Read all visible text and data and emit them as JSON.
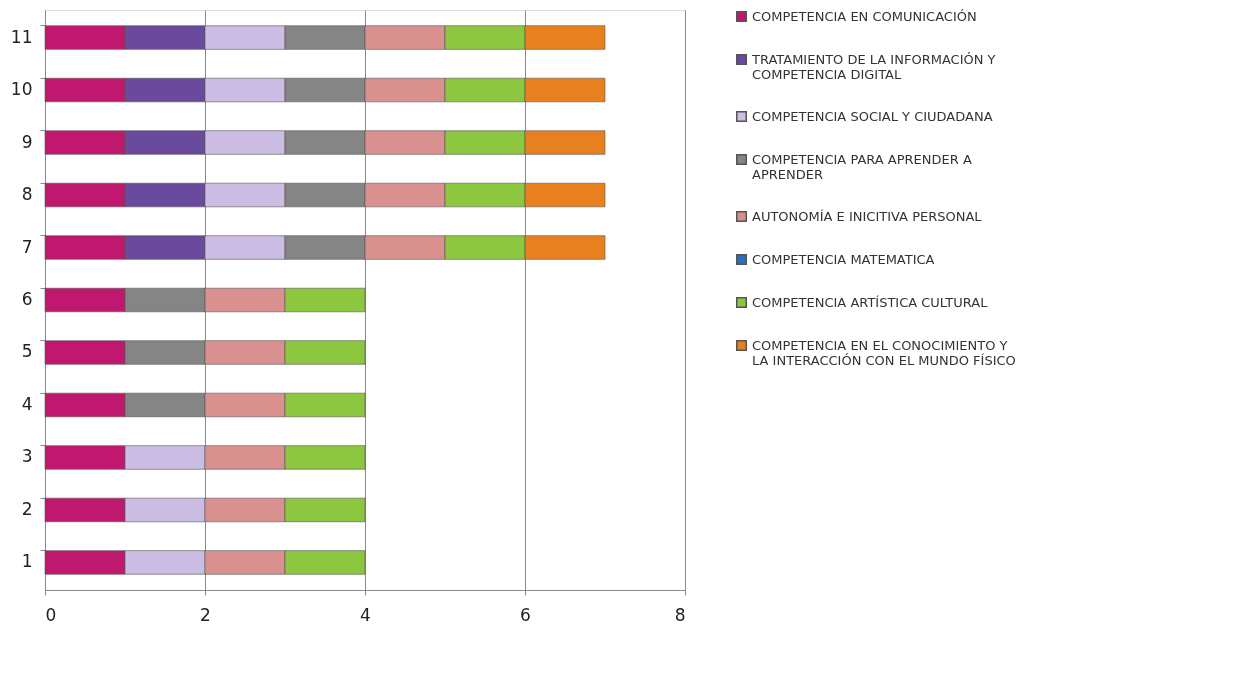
{
  "chart_data": {
    "type": "bar",
    "orientation": "horizontal",
    "stacked": true,
    "categories": [
      "11",
      "10",
      "9",
      "8",
      "7",
      "6",
      "5",
      "4",
      "3",
      "2",
      "1"
    ],
    "series": [
      {
        "name": "COMPETENCIA EN COMUNICACIÓN",
        "color": "#c0186f",
        "values": [
          1,
          1,
          1,
          1,
          1,
          1,
          1,
          1,
          1,
          1,
          1
        ]
      },
      {
        "name": "TRATAMIENTO DE LA INFORMACIÓN Y COMPETENCIA DIGITAL",
        "color": "#6a4a9c",
        "values": [
          1,
          1,
          1,
          1,
          1,
          null,
          null,
          null,
          null,
          null,
          null
        ]
      },
      {
        "name": "COMPETENCIA SOCIAL Y CIUDADANA",
        "color": "#cbbde3",
        "values": [
          1,
          1,
          1,
          1,
          1,
          null,
          null,
          null,
          1,
          1,
          1
        ]
      },
      {
        "name": "COMPETENCIA PARA APRENDER A APRENDER",
        "color": "#858585",
        "values": [
          1,
          1,
          1,
          1,
          1,
          1,
          1,
          1,
          null,
          null,
          null
        ]
      },
      {
        "name": "AUTONOMÍA E INICITIVA PERSONAL",
        "color": "#d9918f",
        "values": [
          1,
          1,
          1,
          1,
          1,
          1,
          1,
          1,
          1,
          1,
          1
        ]
      },
      {
        "name": "COMPETENCIA MATEMATICA",
        "color": "#2f6eb5",
        "values": [
          null,
          null,
          null,
          null,
          null,
          null,
          null,
          null,
          null,
          null,
          null
        ]
      },
      {
        "name": "COMPETENCIA ARTÍSTICA CULTURAL",
        "color": "#8dc63f",
        "values": [
          1,
          1,
          1,
          1,
          1,
          1,
          1,
          1,
          1,
          1,
          1
        ]
      },
      {
        "name": "COMPETENCIA EN EL CONOCIMIENTO Y LA INTERACCIÓN CON EL MUNDO FÍSICO",
        "color": "#e8801f",
        "values": [
          1,
          1,
          1,
          1,
          1,
          null,
          null,
          null,
          null,
          null,
          null
        ]
      }
    ],
    "xlim": [
      0,
      8
    ],
    "xticks": [
      0,
      2,
      4,
      6,
      8
    ],
    "grid": "x",
    "legend": "right"
  }
}
